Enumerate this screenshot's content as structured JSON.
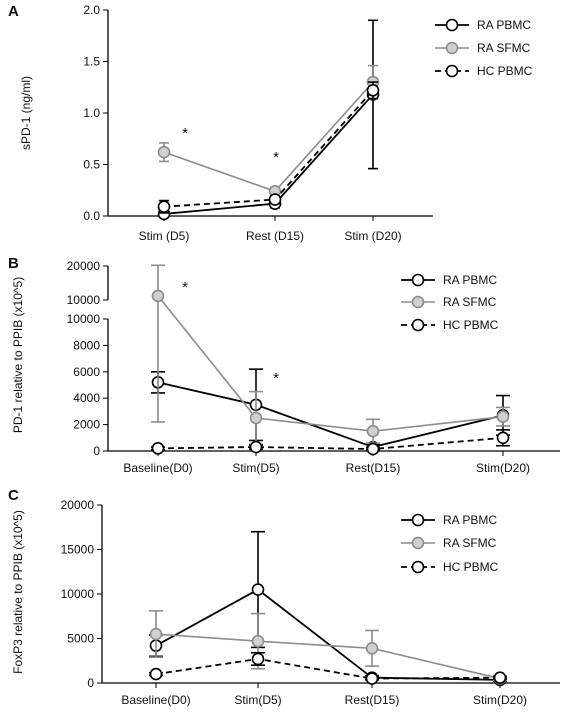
{
  "chart_data": [
    {
      "panel": "A",
      "type": "line",
      "categories": [
        "Stim (D5)",
        "Rest (D15)",
        "Stim (D20)"
      ],
      "ylabel": "sPD-1 (ng/ml)",
      "ylim": [
        0,
        2.0
      ],
      "yticks": [
        "0.0",
        "0.5",
        "1.0",
        "1.5",
        "2.0"
      ],
      "legend_position": "top-right",
      "annotations": [
        "*",
        "*"
      ],
      "series": [
        {
          "name": "RA PBMC",
          "color": "#000000",
          "dash": "solid",
          "values": [
            0.02,
            0.12,
            1.18
          ],
          "err": [
            0.04,
            0.04,
            0.72
          ]
        },
        {
          "name": "RA SFMC",
          "color": "#8c8c8c",
          "dash": "solid",
          "values": [
            0.62,
            0.24,
            1.3
          ],
          "err": [
            0.09,
            0.04,
            0.16
          ]
        },
        {
          "name": "HC PBMC",
          "color": "#000000",
          "dash": "dashed",
          "values": [
            0.09,
            0.16,
            1.22
          ],
          "err": [
            0.06,
            0.03,
            0.08
          ]
        }
      ]
    },
    {
      "panel": "B",
      "type": "line",
      "categories": [
        "Baseline(D0)",
        "Stim(D5)",
        "Rest(D15)",
        "Stim(D20)"
      ],
      "ylabel": "PD-1 relative to PPIB (x10^5)",
      "yticks_lower": [
        "0",
        "2000",
        "4000",
        "6000",
        "8000",
        "10000"
      ],
      "yticks_upper": [
        "10000",
        "20000"
      ],
      "legend_position": "top-right",
      "annotations": [
        "*",
        "*"
      ],
      "series": [
        {
          "name": "RA PBMC",
          "color": "#000000",
          "dash": "solid",
          "values": [
            5200,
            3500,
            300,
            2700
          ],
          "err": [
            800,
            2700,
            200,
            1500
          ]
        },
        {
          "name": "RA SFMC",
          "color": "#8c8c8c",
          "dash": "solid",
          "values": [
            11200,
            2500,
            1500,
            2600
          ],
          "err": [
            9000,
            2000,
            900,
            700
          ]
        },
        {
          "name": "HC PBMC",
          "color": "#000000",
          "dash": "dashed",
          "values": [
            200,
            300,
            150,
            1000
          ],
          "err": [
            100,
            150,
            100,
            600
          ]
        }
      ]
    },
    {
      "panel": "C",
      "type": "line",
      "categories": [
        "Baseline(D0)",
        "Stim(D5)",
        "Rest(D15)",
        "Stim(D20)"
      ],
      "ylabel": "FoxP3 relative to PPIB (x10^5)",
      "ylim": [
        0,
        20000
      ],
      "yticks": [
        "0",
        "5000",
        "10000",
        "15000",
        "20000"
      ],
      "legend_position": "top-right",
      "series": [
        {
          "name": "RA PBMC",
          "color": "#000000",
          "dash": "solid",
          "values": [
            4200,
            10500,
            600,
            350
          ],
          "err": [
            1200,
            6500,
            200,
            150
          ]
        },
        {
          "name": "RA SFMC",
          "color": "#8c8c8c",
          "dash": "solid",
          "values": [
            5500,
            4700,
            3900,
            500
          ],
          "err": [
            2600,
            3100,
            2000,
            200
          ]
        },
        {
          "name": "HC PBMC",
          "color": "#000000",
          "dash": "dashed",
          "values": [
            1000,
            2700,
            500,
            600
          ],
          "err": [
            150,
            700,
            150,
            150
          ]
        }
      ]
    }
  ]
}
